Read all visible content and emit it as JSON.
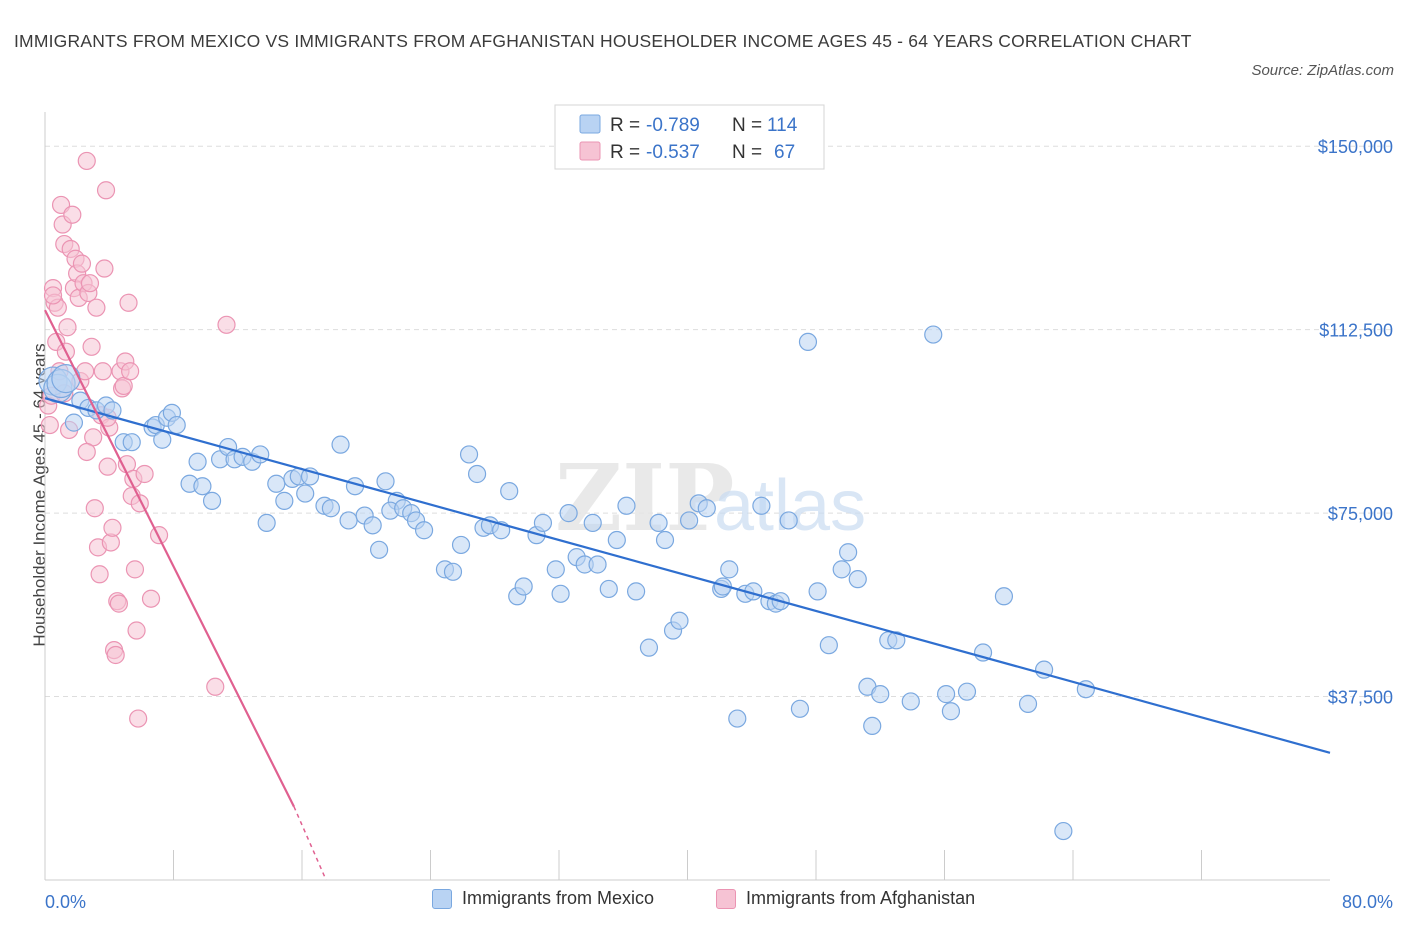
{
  "title": "IMMIGRANTS FROM MEXICO VS IMMIGRANTS FROM AFGHANISTAN HOUSEHOLDER INCOME AGES 45 - 64 YEARS CORRELATION CHART",
  "source": "Source: ZipAtlas.com",
  "watermark": {
    "zip": "ZIP",
    "atlas": "atlas"
  },
  "colors": {
    "mexico_fill": "#b9d3f3",
    "mexico_stroke": "#7aa8e0",
    "mexico_line": "#2f6fcf",
    "afghan_fill": "#f6c3d4",
    "afghan_stroke": "#eb94b3",
    "afghan_line": "#e06090",
    "tick_blue": "#3b74c9",
    "grid": "#dddddd"
  },
  "legend": {
    "rows": [
      {
        "r_label": "R =",
        "r_value": "-0.789",
        "n_label": "N =",
        "n_value": "114"
      },
      {
        "r_label": "R =",
        "r_value": "-0.537",
        "n_label": "N =",
        "n_value": "67"
      }
    ]
  },
  "chart_data": {
    "type": "scatter",
    "title": "IMMIGRANTS FROM MEXICO VS IMMIGRANTS FROM AFGHANISTAN HOUSEHOLDER INCOME AGES 45 - 64 YEARS CORRELATION CHART",
    "xlabel": "",
    "ylabel": "Householder Income Ages 45 - 64 years",
    "xlim": [
      0,
      80
    ],
    "ylim": [
      0,
      157000
    ],
    "x_tick_labels": [
      "0.0%",
      "80.0%"
    ],
    "y_ticks": [
      37500,
      75000,
      112500,
      150000
    ],
    "y_tick_labels": [
      "$37,500",
      "$75,000",
      "$112,500",
      "$150,000"
    ],
    "grid": true,
    "legend_placement": "top-center",
    "series": [
      {
        "name": "Immigrants from Mexico",
        "r": -0.789,
        "n": 114,
        "trend": {
          "x": [
            0,
            80
          ],
          "y": [
            98500,
            26000
          ]
        },
        "points": [
          [
            0.5,
            102000
          ],
          [
            0.8,
            100500
          ],
          [
            1.0,
            101500
          ],
          [
            1.3,
            102500
          ],
          [
            2.2,
            98000
          ],
          [
            1.8,
            93500
          ],
          [
            2.7,
            96500
          ],
          [
            3.2,
            96000
          ],
          [
            3.8,
            97000
          ],
          [
            4.2,
            96000
          ],
          [
            4.9,
            89500
          ],
          [
            5.4,
            89500
          ],
          [
            6.7,
            92500
          ],
          [
            6.9,
            93000
          ],
          [
            7.3,
            90000
          ],
          [
            7.6,
            94500
          ],
          [
            7.9,
            95500
          ],
          [
            8.2,
            93000
          ],
          [
            9.0,
            81000
          ],
          [
            9.5,
            85500
          ],
          [
            9.8,
            80500
          ],
          [
            10.4,
            77500
          ],
          [
            10.9,
            86000
          ],
          [
            11.4,
            88500
          ],
          [
            11.8,
            86000
          ],
          [
            12.3,
            86500
          ],
          [
            12.9,
            85500
          ],
          [
            13.4,
            87000
          ],
          [
            13.8,
            73000
          ],
          [
            14.4,
            81000
          ],
          [
            14.9,
            77500
          ],
          [
            15.4,
            82000
          ],
          [
            15.8,
            82500
          ],
          [
            16.5,
            82500
          ],
          [
            16.2,
            79000
          ],
          [
            17.4,
            76500
          ],
          [
            17.8,
            76000
          ],
          [
            18.4,
            89000
          ],
          [
            18.9,
            73500
          ],
          [
            19.3,
            80500
          ],
          [
            19.9,
            74500
          ],
          [
            20.4,
            72500
          ],
          [
            20.8,
            67500
          ],
          [
            21.2,
            81500
          ],
          [
            21.9,
            77500
          ],
          [
            21.5,
            75500
          ],
          [
            22.3,
            76000
          ],
          [
            22.8,
            75000
          ],
          [
            23.1,
            73500
          ],
          [
            23.6,
            71500
          ],
          [
            24.9,
            63500
          ],
          [
            25.4,
            63000
          ],
          [
            25.9,
            68500
          ],
          [
            26.4,
            87000
          ],
          [
            26.9,
            83000
          ],
          [
            27.3,
            72000
          ],
          [
            27.7,
            72500
          ],
          [
            28.4,
            71500
          ],
          [
            28.9,
            79500
          ],
          [
            29.4,
            58000
          ],
          [
            29.8,
            60000
          ],
          [
            30.6,
            70500
          ],
          [
            31.0,
            73000
          ],
          [
            31.8,
            63500
          ],
          [
            32.1,
            58500
          ],
          [
            32.6,
            75000
          ],
          [
            33.1,
            66000
          ],
          [
            33.6,
            64500
          ],
          [
            34.1,
            73000
          ],
          [
            34.4,
            64500
          ],
          [
            35.1,
            59500
          ],
          [
            35.6,
            69500
          ],
          [
            36.2,
            76500
          ],
          [
            36.8,
            59000
          ],
          [
            37.6,
            47500
          ],
          [
            38.2,
            73000
          ],
          [
            38.6,
            69500
          ],
          [
            39.1,
            51000
          ],
          [
            39.5,
            53000
          ],
          [
            40.1,
            73500
          ],
          [
            40.7,
            77000
          ],
          [
            41.2,
            76000
          ],
          [
            42.1,
            59500
          ],
          [
            42.6,
            63500
          ],
          [
            42.2,
            60000
          ],
          [
            43.1,
            33000
          ],
          [
            43.6,
            58500
          ],
          [
            44.1,
            59000
          ],
          [
            44.6,
            76500
          ],
          [
            45.1,
            57000
          ],
          [
            45.5,
            56500
          ],
          [
            45.8,
            57000
          ],
          [
            46.3,
            73500
          ],
          [
            47.0,
            35000
          ],
          [
            47.5,
            110000
          ],
          [
            48.1,
            59000
          ],
          [
            48.8,
            48000
          ],
          [
            49.6,
            63500
          ],
          [
            50.0,
            67000
          ],
          [
            50.6,
            61500
          ],
          [
            51.2,
            39500
          ],
          [
            51.5,
            31500
          ],
          [
            52.0,
            38000
          ],
          [
            52.5,
            49000
          ],
          [
            53.0,
            49000
          ],
          [
            53.9,
            36500
          ],
          [
            55.3,
            111500
          ],
          [
            56.1,
            38000
          ],
          [
            56.4,
            34500
          ],
          [
            57.4,
            38500
          ],
          [
            58.4,
            46500
          ],
          [
            59.7,
            58000
          ],
          [
            61.2,
            36000
          ],
          [
            62.2,
            43000
          ],
          [
            63.4,
            10000
          ],
          [
            64.8,
            39000
          ]
        ]
      },
      {
        "name": "Immigrants from Afghanistan",
        "r": -0.537,
        "n": 67,
        "trend": {
          "x": [
            0,
            15.5
          ],
          "y": [
            116500,
            15000
          ]
        },
        "trend_dashed": {
          "x": [
            15.5,
            17.5
          ],
          "y": [
            15000,
            0
          ]
        },
        "points": [
          [
            0.2,
            97000
          ],
          [
            0.3,
            93000
          ],
          [
            0.4,
            99000
          ],
          [
            0.5,
            121000
          ],
          [
            0.6,
            118000
          ],
          [
            0.7,
            110000
          ],
          [
            0.8,
            117000
          ],
          [
            0.9,
            104000
          ],
          [
            0.5,
            119500
          ],
          [
            1.0,
            138000
          ],
          [
            1.1,
            134000
          ],
          [
            1.2,
            130000
          ],
          [
            1.3,
            108000
          ],
          [
            1.4,
            113000
          ],
          [
            1.5,
            92000
          ],
          [
            1.6,
            129000
          ],
          [
            1.7,
            136000
          ],
          [
            1.8,
            121000
          ],
          [
            1.9,
            127000
          ],
          [
            2.0,
            124000
          ],
          [
            2.1,
            119000
          ],
          [
            2.2,
            102000
          ],
          [
            2.3,
            126000
          ],
          [
            2.4,
            122000
          ],
          [
            2.5,
            104000
          ],
          [
            2.6,
            147000
          ],
          [
            2.7,
            120000
          ],
          [
            2.8,
            122000
          ],
          [
            2.9,
            109000
          ],
          [
            3.0,
            90500
          ],
          [
            3.1,
            76000
          ],
          [
            3.2,
            117000
          ],
          [
            3.3,
            68000
          ],
          [
            3.4,
            62500
          ],
          [
            3.5,
            95000
          ],
          [
            3.6,
            104000
          ],
          [
            3.7,
            125000
          ],
          [
            3.8,
            141000
          ],
          [
            3.9,
            84500
          ],
          [
            4.0,
            92500
          ],
          [
            4.1,
            69000
          ],
          [
            4.2,
            72000
          ],
          [
            4.3,
            47000
          ],
          [
            4.4,
            46000
          ],
          [
            4.5,
            57000
          ],
          [
            4.6,
            56500
          ],
          [
            4.7,
            104000
          ],
          [
            4.8,
            100500
          ],
          [
            4.9,
            101000
          ],
          [
            5.0,
            106000
          ],
          [
            5.1,
            85000
          ],
          [
            5.2,
            118000
          ],
          [
            5.3,
            104000
          ],
          [
            5.4,
            78500
          ],
          [
            5.5,
            82000
          ],
          [
            5.6,
            63500
          ],
          [
            5.7,
            51000
          ],
          [
            5.8,
            33000
          ],
          [
            5.9,
            77000
          ],
          [
            6.2,
            83000
          ],
          [
            6.6,
            57500
          ],
          [
            7.1,
            70500
          ],
          [
            10.6,
            39500
          ],
          [
            11.3,
            113500
          ],
          [
            3.9,
            94500
          ],
          [
            1.2,
            99500
          ],
          [
            2.6,
            87500
          ]
        ]
      }
    ]
  }
}
